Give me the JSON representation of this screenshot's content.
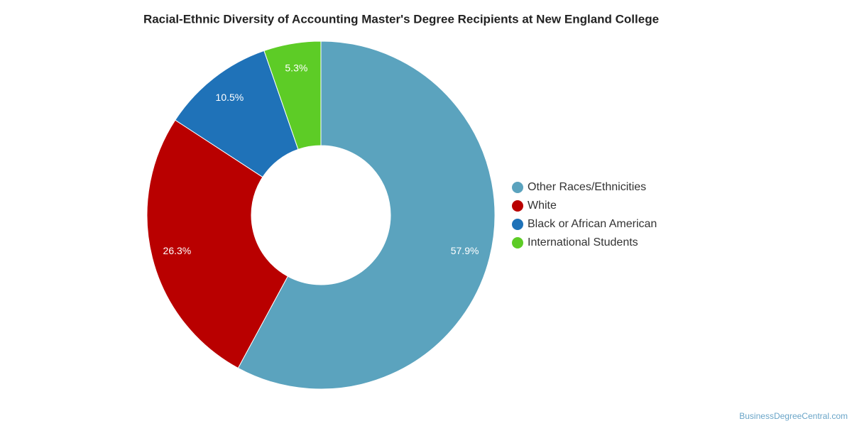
{
  "chart_data": {
    "type": "donut",
    "title": "Racial-Ethnic Diversity of Accounting Master's Degree Recipients at New England College",
    "categories": [
      "Other Races/Ethnicities",
      "White",
      "Black or African American",
      "International Students"
    ],
    "values": [
      57.9,
      26.3,
      10.5,
      5.3
    ],
    "value_labels": [
      "57.9%",
      "26.3%",
      "10.5%",
      "5.3%"
    ],
    "colors": [
      "#5ba3be",
      "#b90000",
      "#1f72b8",
      "#5dcc26"
    ],
    "legend": "right",
    "source": "BusinessDegreeCentral.com"
  }
}
